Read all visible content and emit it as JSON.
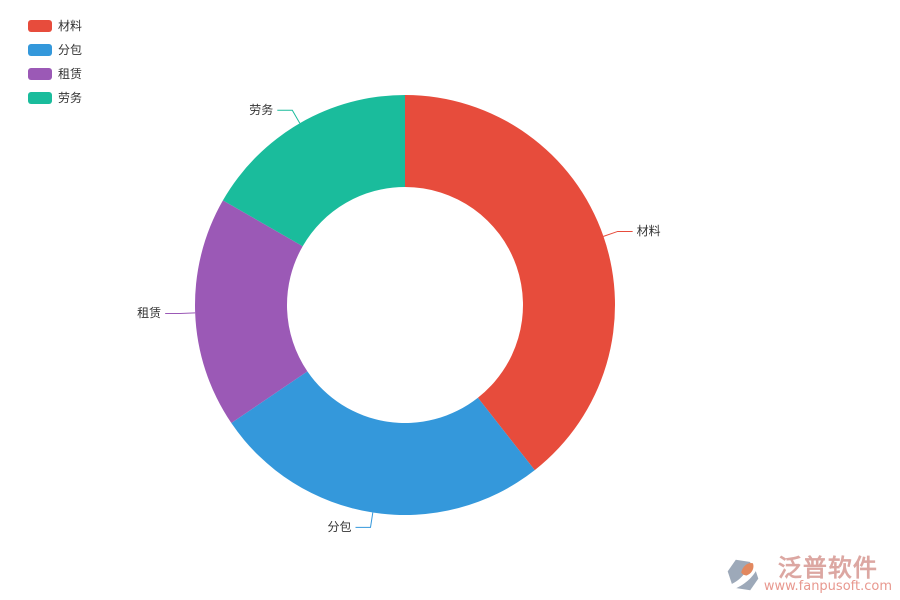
{
  "page": {
    "background": "#ffffff"
  },
  "chart_data": {
    "type": "pie",
    "subtype": "donut",
    "direction": "clockwise",
    "start_angle_deg": 0,
    "legend_position": "top-left",
    "label_style": "outside-with-leader-lines",
    "label_text_color": "#333333",
    "series": [
      {
        "key": "cailiao",
        "name": "材料",
        "percent": 39.4,
        "color": "#e74c3c"
      },
      {
        "key": "fenbao",
        "name": "分包",
        "percent": 26.1,
        "color": "#3498db"
      },
      {
        "key": "zulin",
        "name": "租赁",
        "percent": 17.8,
        "color": "#9b59b6"
      },
      {
        "key": "laowu",
        "name": "劳务",
        "percent": 16.7,
        "color": "#1abc9c"
      }
    ]
  },
  "legend": {
    "items": [
      {
        "key": "cailiao",
        "label": "材料",
        "color": "#e74c3c"
      },
      {
        "key": "fenbao",
        "label": "分包",
        "color": "#3498db"
      },
      {
        "key": "zulin",
        "label": "租赁",
        "color": "#9b59b6"
      },
      {
        "key": "laowu",
        "label": "劳务",
        "color": "#1abc9c"
      }
    ]
  },
  "watermark": {
    "brand": "泛普软件",
    "url": "www.fanpusoft.com",
    "brand_color": "#dca7a2",
    "url_color": "#e8988f",
    "logo_gray": "#9da9b9",
    "logo_orange": "#e2885f"
  }
}
